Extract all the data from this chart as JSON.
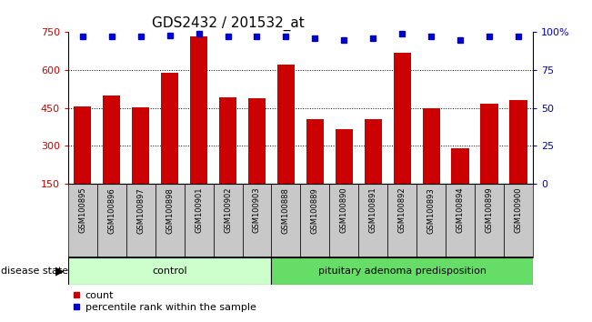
{
  "title": "GDS2432 / 201532_at",
  "samples": [
    "GSM100895",
    "GSM100896",
    "GSM100897",
    "GSM100898",
    "GSM100901",
    "GSM100902",
    "GSM100903",
    "GSM100888",
    "GSM100889",
    "GSM100890",
    "GSM100891",
    "GSM100892",
    "GSM100893",
    "GSM100894",
    "GSM100899",
    "GSM100900"
  ],
  "counts": [
    455,
    500,
    452,
    590,
    735,
    490,
    487,
    620,
    405,
    365,
    405,
    670,
    450,
    290,
    465,
    480
  ],
  "percentiles": [
    97,
    97,
    97,
    98,
    99,
    97,
    97,
    97,
    96,
    95,
    96,
    99,
    97,
    95,
    97,
    97
  ],
  "control_count": 7,
  "disease_count": 9,
  "group1_label": "control",
  "group2_label": "pituitary adenoma predisposition",
  "ylim_left": [
    150,
    750
  ],
  "ylim_right": [
    0,
    100
  ],
  "yticks_left": [
    150,
    300,
    450,
    600,
    750
  ],
  "yticks_right": [
    0,
    25,
    50,
    75,
    100
  ],
  "bar_color": "#cc0000",
  "dot_color": "#0000cc",
  "bar_width": 0.6,
  "tick_bg": "#c8c8c8",
  "group1_color": "#ccffcc",
  "group2_color": "#66dd66",
  "legend_count_label": "count",
  "legend_pct_label": "percentile rank within the sample",
  "title_fontsize": 11,
  "axis_fontsize": 8,
  "label_fontsize": 6
}
